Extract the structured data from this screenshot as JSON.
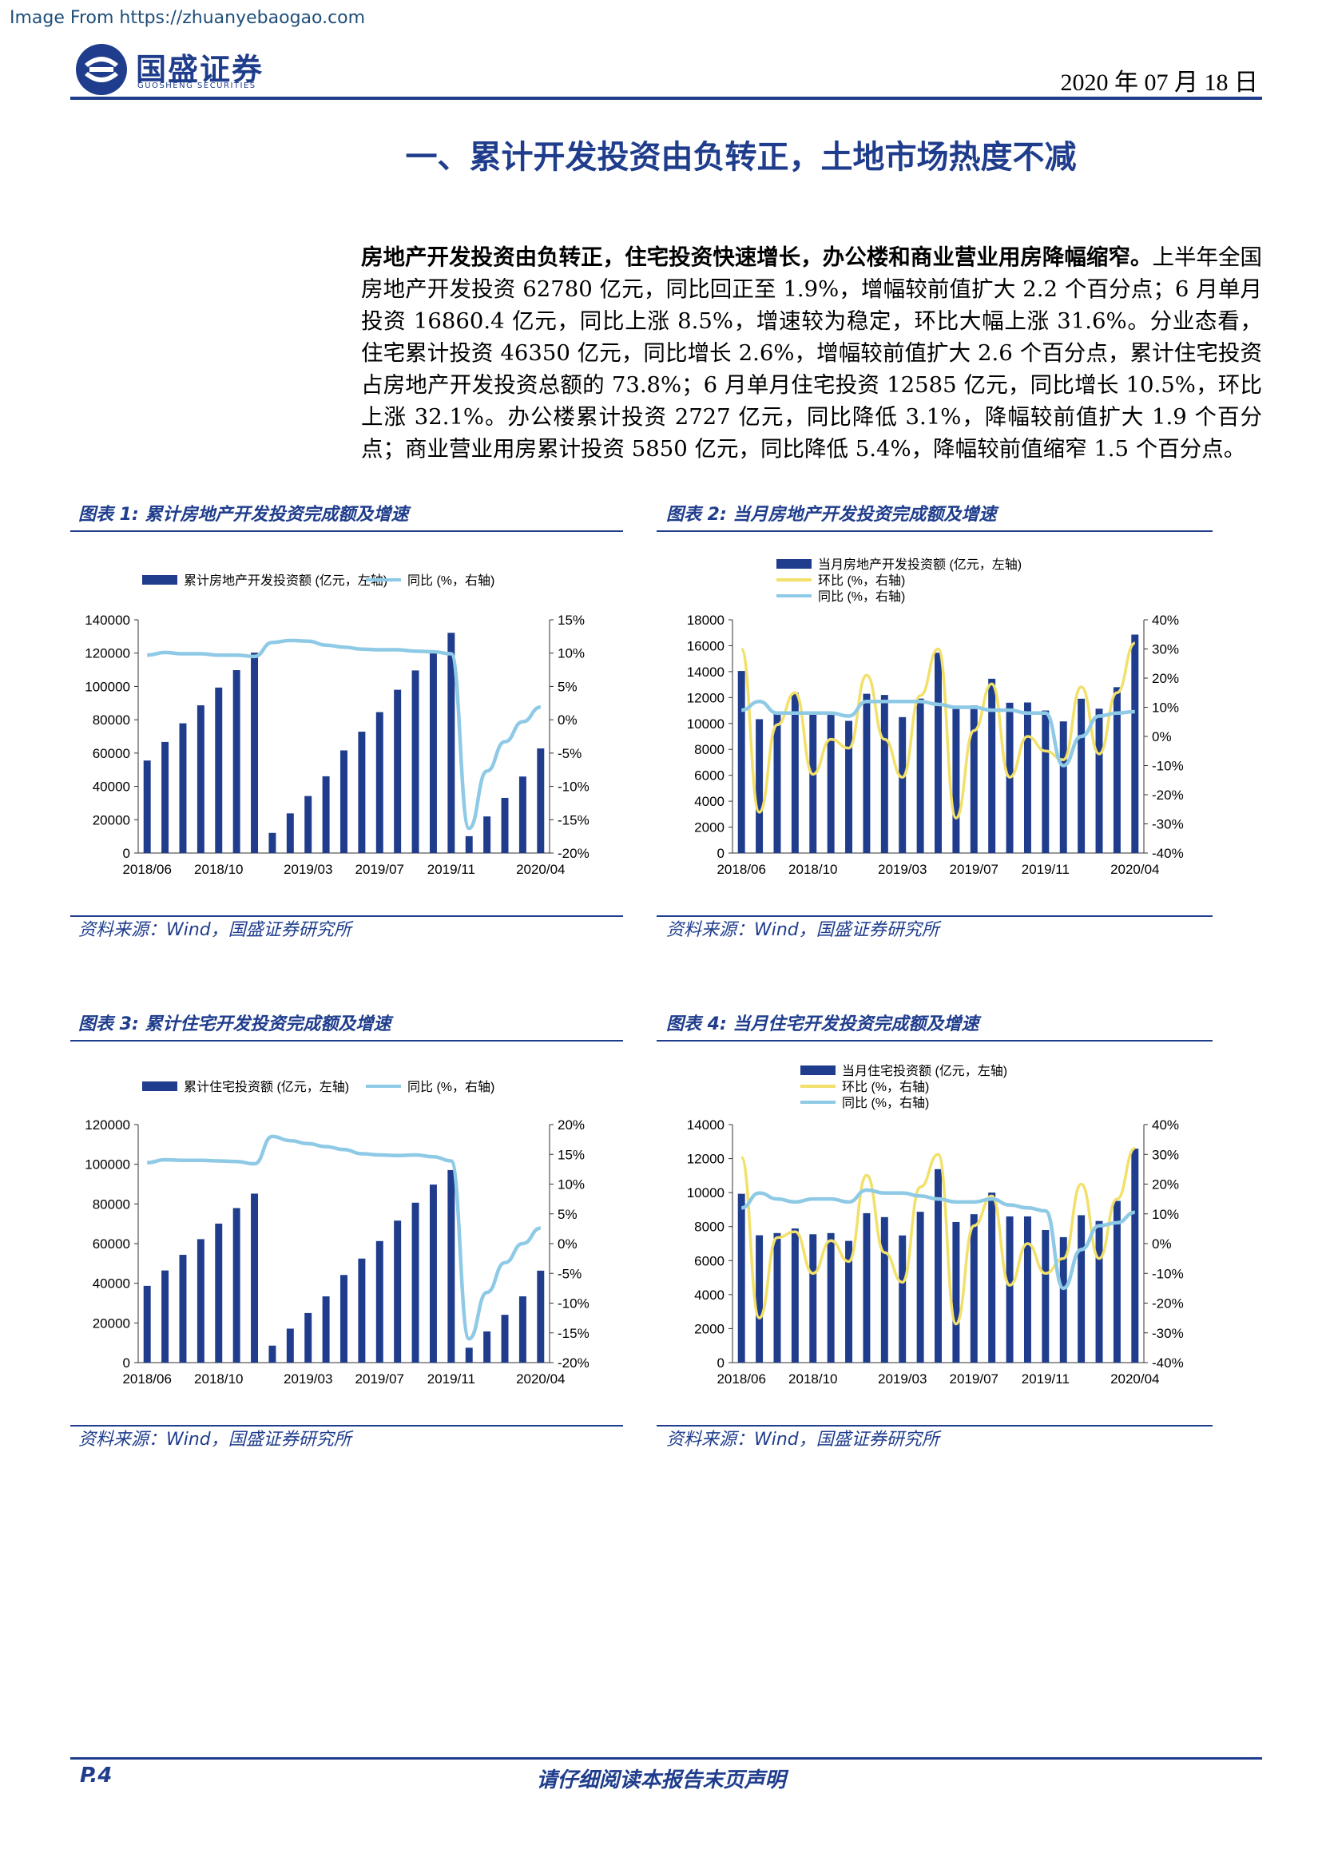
{
  "watermark": "Image From https://zhuanyebaogao.com",
  "header": {
    "brand": "国盛证券",
    "brand_en": "GUOSHENG SECURITIES",
    "date": "2020 年 07 月 18 日"
  },
  "section_title": "一、累计开发投资由负转正，土地市场热度不减",
  "body": {
    "lead": "房地产开发投资由负转正，住宅投资快速增长，办公楼和商业营业用房降幅缩窄。",
    "rest": "上半年全国房地产开发投资 62780 亿元，同比回正至 1.9%，增幅较前值扩大 2.2 个百分点；6 月单月投资 16860.4 亿元，同比上涨 8.5%，增速较为稳定，环比大幅上涨 31.6%。分业态看，住宅累计投资 46350 亿元，同比增长 2.6%，增幅较前值扩大 2.6 个百分点，累计住宅投资占房地产开发投资总额的 73.8%；6 月单月住宅投资 12585 亿元，同比增长 10.5%，环比上涨 32.1%。办公楼累计投资 2727 亿元，同比降低 3.1%，降幅较前值扩大 1.9 个百分点；商业营业用房累计投资 5850 亿元，同比降低 5.4%，降幅较前值缩窄 1.5 个百分点。"
  },
  "footer": {
    "page": "P.4",
    "disclaimer": "请仔细阅读本报告末页声明"
  },
  "colors": {
    "bar": "#1f3d8c",
    "yoy": "#8ecae6",
    "mom": "#f2e06a",
    "accent": "#1f3d8c"
  },
  "chart_data": [
    {
      "id": "c1",
      "type": "bar+line",
      "caption": "图表 1:  累计房地产开发投资完成额及增速",
      "source": "资料来源：Wind，国盛证券研究所",
      "legend": [
        "累计房地产开发投资额 (亿元，左轴)",
        "同比 (%，右轴)"
      ],
      "x_ticks": [
        "2018/06",
        "2018/10",
        "2019/03",
        "2019/07",
        "2019/11",
        "2020/04"
      ],
      "y_left": {
        "min": 0,
        "max": 140000,
        "ticks": [
          "0",
          "20000",
          "40000",
          "60000",
          "80000",
          "100000",
          "120000",
          "140000"
        ]
      },
      "y_right": {
        "min": -20,
        "max": 15,
        "ticks": [
          "-20%",
          "-15%",
          "-10%",
          "-5%",
          "0%",
          "5%",
          "10%",
          "15%"
        ]
      },
      "bars": [
        55531,
        66689,
        77877,
        88664,
        99325,
        109785,
        120264,
        12090,
        23803,
        34217,
        46075,
        61609,
        72843,
        84589,
        98008,
        109603,
        121265,
        132194,
        10115,
        21963,
        33103,
        45920,
        62780
      ],
      "yoy": [
        9.7,
        10.1,
        9.9,
        9.9,
        9.7,
        9.7,
        9.5,
        11.6,
        11.9,
        11.8,
        11.2,
        10.9,
        10.6,
        10.5,
        10.5,
        10.3,
        10.2,
        9.9,
        -16.3,
        -7.7,
        -3.3,
        -0.3,
        1.9
      ]
    },
    {
      "id": "c2",
      "type": "bar+line",
      "caption": "图表 2:  当月房地产开发投资完成额及增速",
      "source": "资料来源：Wind，国盛证券研究所",
      "legend": [
        "当月房地产开发投资额 (亿元，左轴)",
        "环比 (%，右轴)",
        "同比 (%，右轴)"
      ],
      "x_ticks": [
        "2018/06",
        "2018/10",
        "2019/03",
        "2019/07",
        "2019/11",
        "2020/04"
      ],
      "y_left": {
        "min": 0,
        "max": 18000,
        "ticks": [
          "0",
          "2000",
          "4000",
          "6000",
          "8000",
          "10000",
          "12000",
          "14000",
          "16000",
          "18000"
        ]
      },
      "y_right": {
        "min": -40,
        "max": 40,
        "ticks": [
          "-40%",
          "-30%",
          "-20%",
          "-10%",
          "0%",
          "10%",
          "20%",
          "30%",
          "40%"
        ]
      },
      "bars": [
        14050,
        10330,
        10760,
        12380,
        10810,
        10660,
        10200,
        12290,
        12200,
        10490,
        11920,
        15460,
        11200,
        11390,
        13450,
        11600,
        11620,
        11000,
        10160,
        11910,
        11140,
        12800,
        16860
      ],
      "mom": [
        30,
        -26,
        4,
        15,
        -13,
        -1,
        -4,
        21,
        -1,
        -14,
        14,
        30,
        -28,
        2,
        18,
        -14,
        0,
        -5,
        -8,
        17,
        -6,
        15,
        32
      ],
      "yoy": [
        9,
        12,
        8,
        8,
        8,
        8,
        7,
        12,
        12,
        12,
        12,
        11,
        10,
        10,
        9,
        9,
        8,
        8,
        -10,
        0,
        7,
        8,
        8.5
      ]
    },
    {
      "id": "c3",
      "type": "bar+line",
      "caption": "图表 3:  累计住宅开发投资完成额及增速",
      "source": "资料来源：Wind，国盛证券研究所",
      "legend": [
        "累计住宅投资额 (亿元，左轴)",
        "同比 (%，右轴)"
      ],
      "x_ticks": [
        "2018/06",
        "2018/10",
        "2019/03",
        "2019/07",
        "2019/11",
        "2020/04"
      ],
      "y_left": {
        "min": 0,
        "max": 120000,
        "ticks": [
          "0",
          "20000",
          "40000",
          "60000",
          "80000",
          "100000",
          "120000"
        ]
      },
      "y_right": {
        "min": -20,
        "max": 20,
        "ticks": [
          "-20%",
          "-15%",
          "-10%",
          "-5%",
          "0%",
          "5%",
          "10%",
          "15%",
          "20%"
        ]
      },
      "bars": [
        38710,
        46457,
        54351,
        62247,
        70075,
        77905,
        85192,
        8569,
        17129,
        25007,
        33394,
        44176,
        52445,
        61290,
        71591,
        80632,
        89760,
        97071,
        7508,
        15722,
        24106,
        33410,
        46350
      ],
      "yoy": [
        13.6,
        14.1,
        14.0,
        14.0,
        13.9,
        13.8,
        13.4,
        18.0,
        17.3,
        16.8,
        16.3,
        15.8,
        15.1,
        14.9,
        14.8,
        14.9,
        14.6,
        13.9,
        -16.0,
        -8.2,
        -3.2,
        0.0,
        2.6
      ]
    },
    {
      "id": "c4",
      "type": "bar+line",
      "caption": "图表 4:  当月住宅开发投资完成额及增速",
      "source": "资料来源：Wind，国盛证券研究所",
      "legend": [
        "当月住宅投资额 (亿元，左轴)",
        "环比 (%，右轴)",
        "同比 (%，右轴)"
      ],
      "x_ticks": [
        "2018/06",
        "2018/10",
        "2019/03",
        "2019/07",
        "2019/11",
        "2020/04"
      ],
      "y_left": {
        "min": 0,
        "max": 14000,
        "ticks": [
          "0",
          "2000",
          "4000",
          "6000",
          "8000",
          "10000",
          "12000",
          "14000"
        ]
      },
      "y_right": {
        "min": -40,
        "max": 40,
        "ticks": [
          "-40%",
          "-30%",
          "-20%",
          "-10%",
          "0%",
          "10%",
          "20%",
          "30%",
          "40%"
        ]
      },
      "bars": [
        9930,
        7490,
        7620,
        7890,
        7550,
        7620,
        7160,
        8790,
        8560,
        7480,
        8870,
        11380,
        8270,
        8730,
        10000,
        8600,
        8600,
        7800,
        7380,
        8670,
        8330,
        9510,
        12585
      ],
      "mom": [
        29,
        -25,
        2,
        4,
        -10,
        1,
        -6,
        23,
        -3,
        -13,
        19,
        30,
        -27,
        6,
        16,
        -14,
        0,
        -10,
        -5,
        20,
        -5,
        15,
        32
      ],
      "yoy": [
        12,
        17,
        15,
        14,
        15,
        15,
        14,
        18,
        17,
        17,
        16,
        15,
        14,
        14,
        15,
        13,
        12,
        11,
        -15,
        -2,
        6,
        7,
        10.5
      ]
    }
  ]
}
